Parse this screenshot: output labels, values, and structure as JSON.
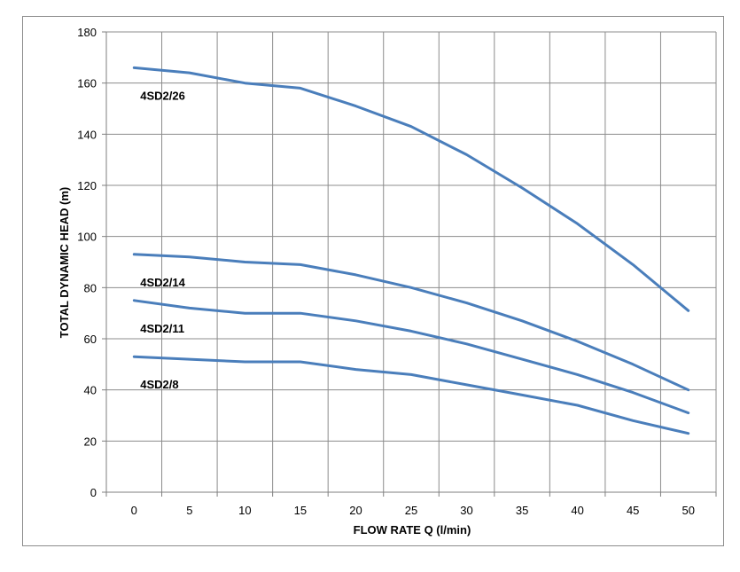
{
  "chart_data": {
    "type": "line",
    "xlabel": "FLOW RATE Q (l/min)",
    "ylabel": "TOTAL DYNAMIC HEAD (m)",
    "x": [
      0,
      5,
      10,
      15,
      20,
      25,
      30,
      35,
      40,
      45,
      50
    ],
    "xlim": [
      -2.5,
      52.5
    ],
    "ylim": [
      0,
      180
    ],
    "yticks": [
      0,
      20,
      40,
      60,
      80,
      100,
      120,
      140,
      160,
      180
    ],
    "xticks": [
      0,
      5,
      10,
      15,
      20,
      25,
      30,
      35,
      40,
      45,
      50
    ],
    "grid": true,
    "line_color": "#4A7EBB",
    "series": [
      {
        "name": "4SD2/26",
        "values": [
          166,
          164,
          160,
          158,
          151,
          143,
          132,
          119,
          105,
          89,
          71
        ]
      },
      {
        "name": "4SD2/14",
        "values": [
          93,
          92,
          90,
          89,
          85,
          80,
          74,
          67,
          59,
          50,
          40
        ]
      },
      {
        "name": "4SD2/11",
        "values": [
          75,
          72,
          70,
          70,
          67,
          63,
          58,
          52,
          46,
          39,
          31
        ]
      },
      {
        "name": "4SD2/8",
        "values": [
          53,
          52,
          51,
          51,
          48,
          46,
          42,
          38,
          34,
          28,
          23
        ]
      }
    ]
  }
}
